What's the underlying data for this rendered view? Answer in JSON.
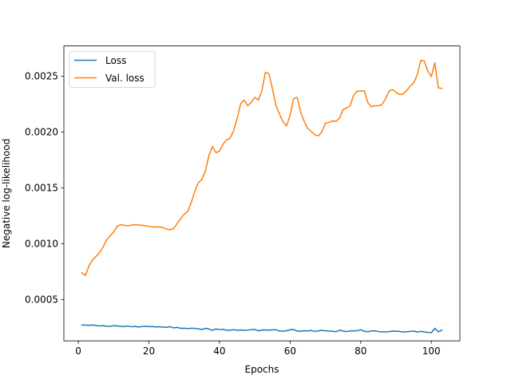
{
  "chart_data": {
    "type": "line",
    "title": "",
    "xlabel": "Epochs",
    "ylabel": "Negative log-likelihood",
    "xlim": [
      -4.1,
      108.1
    ],
    "ylim": [
      0.00013,
      0.00277
    ],
    "xticks": [
      0,
      20,
      40,
      60,
      80,
      100
    ],
    "yticks": [
      0.0005,
      0.001,
      0.0015,
      0.002,
      0.0025
    ],
    "ytick_labels": [
      "0.0005",
      "0.0010",
      "0.0015",
      "0.0020",
      "0.0025"
    ],
    "grid": false,
    "legend_position": "top-left",
    "series": [
      {
        "name": "Loss",
        "color": "#1f77b4",
        "x": [
          1,
          2,
          3,
          4,
          5,
          6,
          7,
          8,
          9,
          10,
          11,
          12,
          13,
          14,
          15,
          16,
          17,
          18,
          19,
          20,
          21,
          22,
          23,
          24,
          25,
          26,
          27,
          28,
          29,
          30,
          31,
          32,
          33,
          34,
          35,
          36,
          37,
          38,
          39,
          40,
          41,
          42,
          43,
          44,
          45,
          46,
          47,
          48,
          49,
          50,
          51,
          52,
          53,
          54,
          55,
          56,
          57,
          58,
          59,
          60,
          61,
          62,
          63,
          64,
          65,
          66,
          67,
          68,
          69,
          70,
          71,
          72,
          73,
          74,
          75,
          76,
          77,
          78,
          79,
          80,
          81,
          82,
          83,
          84,
          85,
          86,
          87,
          88,
          89,
          90,
          91,
          92,
          93,
          94,
          95,
          96,
          97,
          98,
          99,
          100,
          101,
          102,
          103
        ],
        "values": [
          0.000272,
          0.000271,
          0.00027,
          0.000272,
          0.000268,
          0.000264,
          0.000266,
          0.000261,
          0.00026,
          0.000266,
          0.000264,
          0.00026,
          0.000258,
          0.000263,
          0.000256,
          0.00026,
          0.000254,
          0.000258,
          0.000261,
          0.000257,
          0.000258,
          0.000255,
          0.000256,
          0.000254,
          0.000251,
          0.000257,
          0.000246,
          0.000251,
          0.000242,
          0.000243,
          0.00024,
          0.000243,
          0.000242,
          0.000238,
          0.000232,
          0.000243,
          0.000236,
          0.000225,
          0.000237,
          0.000231,
          0.000234,
          0.000224,
          0.000226,
          0.00023,
          0.000224,
          0.000228,
          0.000225,
          0.000226,
          0.000231,
          0.000232,
          0.00022,
          0.000227,
          0.000228,
          0.000226,
          0.000229,
          0.00023,
          0.000218,
          0.000217,
          0.000221,
          0.000229,
          0.000232,
          0.000218,
          0.000216,
          0.000221,
          0.000219,
          0.000223,
          0.000214,
          0.00022,
          0.000225,
          0.00022,
          0.000218,
          0.000217,
          0.000211,
          0.000226,
          0.000218,
          0.000213,
          0.00022,
          0.00022,
          0.000221,
          0.00023,
          0.000215,
          0.000212,
          0.000218,
          0.00022,
          0.000214,
          0.000209,
          0.000211,
          0.000213,
          0.000217,
          0.000216,
          0.000215,
          0.000209,
          0.000212,
          0.000214,
          0.000218,
          0.000209,
          0.000215,
          0.00021,
          0.000206,
          0.000203,
          0.000243,
          0.000211,
          0.000225
        ]
      },
      {
        "name": "Val. loss",
        "color": "#ff7f0e",
        "x": [
          1,
          2,
          3,
          4,
          5,
          6,
          7,
          8,
          9,
          10,
          11,
          12,
          13,
          14,
          15,
          16,
          17,
          18,
          19,
          20,
          21,
          22,
          23,
          24,
          25,
          26,
          27,
          28,
          29,
          30,
          31,
          32,
          33,
          34,
          35,
          36,
          37,
          38,
          39,
          40,
          41,
          42,
          43,
          44,
          45,
          46,
          47,
          48,
          49,
          50,
          51,
          52,
          53,
          54,
          55,
          56,
          57,
          58,
          59,
          60,
          61,
          62,
          63,
          64,
          65,
          66,
          67,
          68,
          69,
          70,
          71,
          72,
          73,
          74,
          75,
          76,
          77,
          78,
          79,
          80,
          81,
          82,
          83,
          84,
          85,
          86,
          87,
          88,
          89,
          90,
          91,
          92,
          93,
          94,
          95,
          96,
          97,
          98,
          99,
          100,
          101,
          102,
          103
        ],
        "values": [
          0.00074,
          0.000715,
          0.0008,
          0.000855,
          0.000885,
          0.00092,
          0.00097,
          0.001035,
          0.00107,
          0.001105,
          0.001155,
          0.00117,
          0.001165,
          0.00116,
          0.001165,
          0.00117,
          0.001168,
          0.001165,
          0.00116,
          0.001155,
          0.001148,
          0.00115,
          0.00115,
          0.001145,
          0.00113,
          0.001125,
          0.001135,
          0.00118,
          0.001225,
          0.001265,
          0.00129,
          0.00137,
          0.00147,
          0.001545,
          0.001575,
          0.00165,
          0.00179,
          0.00187,
          0.001815,
          0.00183,
          0.00189,
          0.00193,
          0.001945,
          0.00201,
          0.002125,
          0.002255,
          0.002285,
          0.002235,
          0.002265,
          0.00231,
          0.002285,
          0.00237,
          0.002535,
          0.00252,
          0.002385,
          0.002235,
          0.00216,
          0.00209,
          0.002055,
          0.00215,
          0.0023,
          0.00231,
          0.002175,
          0.002095,
          0.00203,
          0.002005,
          0.001975,
          0.001965,
          0.002,
          0.00208,
          0.002085,
          0.0021,
          0.002095,
          0.002125,
          0.0022,
          0.002215,
          0.002235,
          0.00233,
          0.002365,
          0.002365,
          0.00237,
          0.002265,
          0.002225,
          0.002235,
          0.002235,
          0.002245,
          0.002295,
          0.002365,
          0.00238,
          0.002355,
          0.002335,
          0.00234,
          0.00237,
          0.00241,
          0.00244,
          0.00251,
          0.00264,
          0.002635,
          0.002545,
          0.002495,
          0.00262,
          0.002395,
          0.00239
        ]
      }
    ]
  }
}
